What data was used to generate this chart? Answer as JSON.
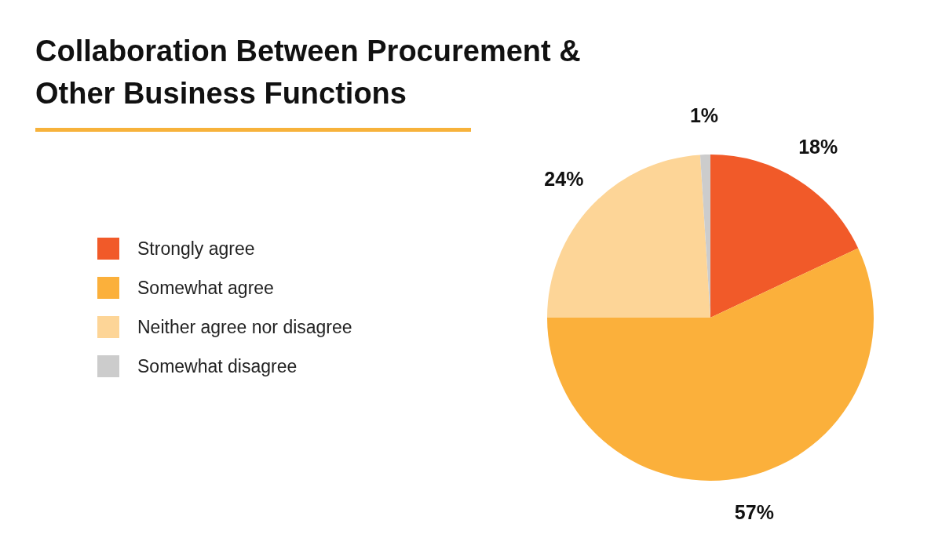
{
  "chart_data": {
    "type": "pie",
    "title": "Collaboration Between Procurement & Other Business Functions",
    "categories": [
      "Strongly agree",
      "Somewhat agree",
      "Neither agree nor disagree",
      "Somewhat disagree"
    ],
    "values": [
      18,
      57,
      24,
      1
    ],
    "colors": [
      "#f15a29",
      "#fbb03b",
      "#fdd597",
      "#cccccc"
    ],
    "value_labels": [
      "18%",
      "57%",
      "24%",
      "1%"
    ],
    "legend": "left"
  }
}
